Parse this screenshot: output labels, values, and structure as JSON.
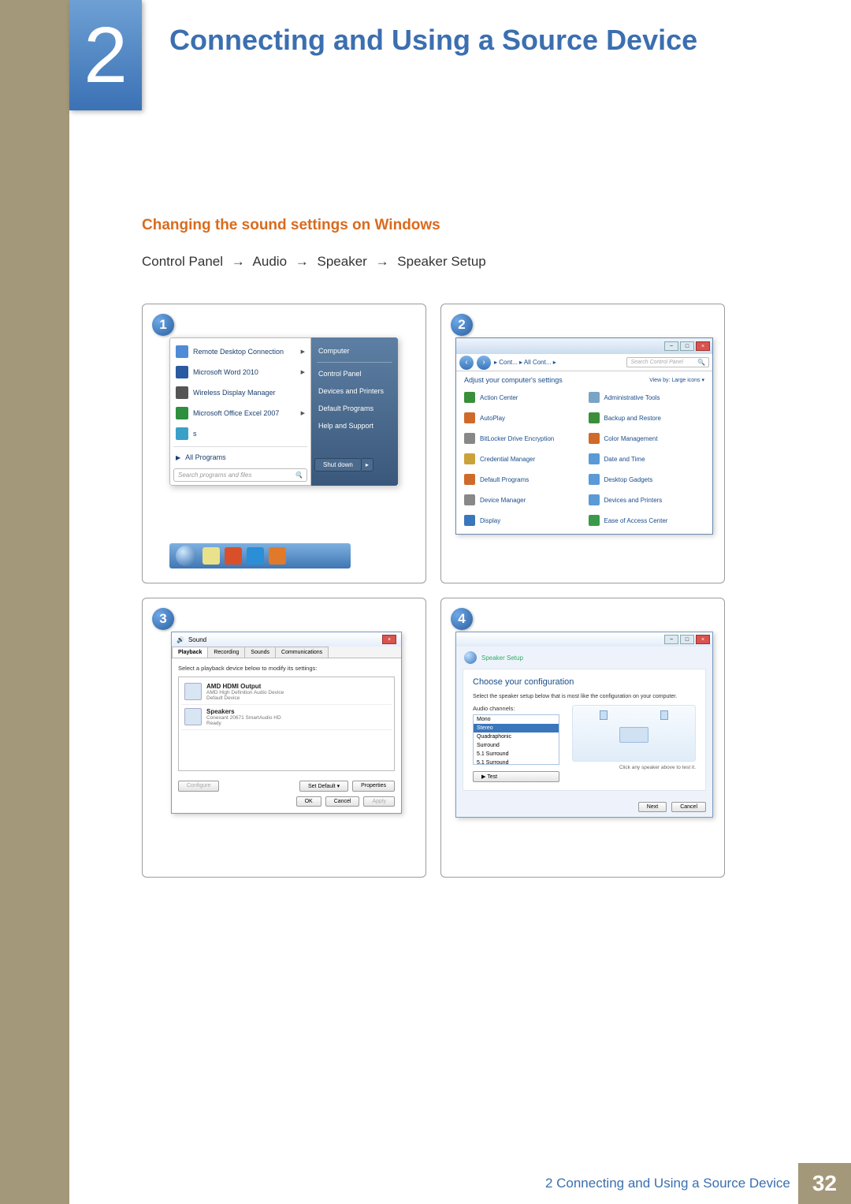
{
  "chapter": {
    "number": "2",
    "title": "Connecting and Using a Source Device"
  },
  "section_heading": "Changing the sound settings on Windows",
  "path": [
    "Control Panel",
    "Audio",
    "Speaker",
    "Speaker Setup"
  ],
  "arrow_glyph": "→",
  "colors": {
    "khaki": "#a4987a",
    "blue_title": "#3b6fb0",
    "orange_heading": "#d96b1e",
    "link_blue": "#1a4d8a",
    "bullet_grad_top": "#6ea8e6",
    "bullet_grad_bot": "#2a5fa0"
  },
  "steps": {
    "s1": {
      "num": "1",
      "left_items": [
        {
          "label": "Remote Desktop Connection",
          "icon_color": "#4f8bd6",
          "arrow": true
        },
        {
          "label": "Microsoft Word 2010",
          "icon_color": "#2a5aa0",
          "arrow": true
        },
        {
          "label": "Wireless Display Manager",
          "icon_color": "#555555",
          "arrow": false
        },
        {
          "label": "Microsoft Office Excel 2007",
          "icon_color": "#2f8f3f",
          "arrow": true
        },
        {
          "label": "s",
          "icon_color": "#3aa0c8",
          "arrow": false
        }
      ],
      "all_programs": "All Programs",
      "search_placeholder": "Search programs and files",
      "right_items": [
        "Computer",
        "Control Panel",
        "Devices and Printers",
        "Default Programs",
        "Help and Support"
      ],
      "shutdown": "Shut down",
      "taskbar_colors": [
        "#e9e28a",
        "#d94f2a",
        "#2a8fd6",
        "#e07a2a"
      ]
    },
    "s2": {
      "num": "2",
      "breadcrumb": "▸ Cont... ▸ All Cont... ▸",
      "search_placeholder": "Search Control Panel",
      "adjust": "Adjust your computer's settings",
      "viewby": "View by:  Large icons ▾",
      "items": [
        {
          "label": "Action Center",
          "c": "#3a8f3a"
        },
        {
          "label": "Administrative Tools",
          "c": "#7aa4c4"
        },
        {
          "label": "AutoPlay",
          "c": "#d06a2a"
        },
        {
          "label": "Backup and Restore",
          "c": "#3a8f3a"
        },
        {
          "label": "BitLocker Drive Encryption",
          "c": "#888888"
        },
        {
          "label": "Color Management",
          "c": "#d06a2a"
        },
        {
          "label": "Credential Manager",
          "c": "#caa23a"
        },
        {
          "label": "Date and Time",
          "c": "#5a9ad6"
        },
        {
          "label": "Default Programs",
          "c": "#d06a2a"
        },
        {
          "label": "Desktop Gadgets",
          "c": "#5a9ad6"
        },
        {
          "label": "Device Manager",
          "c": "#888888"
        },
        {
          "label": "Devices and Printers",
          "c": "#5a9ad6"
        },
        {
          "label": "Display",
          "c": "#3a76bb"
        },
        {
          "label": "Ease of Access Center",
          "c": "#3a9a4a"
        }
      ]
    },
    "s3": {
      "num": "3",
      "title": "Sound",
      "tabs": [
        "Playback",
        "Recording",
        "Sounds",
        "Communications"
      ],
      "instruction": "Select a playback device below to modify its settings:",
      "devices": [
        {
          "name": "AMD HDMI Output",
          "sub1": "AMD High Definition Audio Device",
          "sub2": "Default Device"
        },
        {
          "name": "Speakers",
          "sub1": "Conexant 20671 SmartAudio HD",
          "sub2": "Ready"
        }
      ],
      "btn_configure": "Configure",
      "btn_setdefault": "Set Default ▾",
      "btn_properties": "Properties",
      "btn_ok": "OK",
      "btn_cancel": "Cancel",
      "btn_apply": "Apply"
    },
    "s4": {
      "num": "4",
      "nav": "Speaker Setup",
      "heading": "Choose your configuration",
      "instruction": "Select the speaker setup below that is most like the configuration on your computer.",
      "list_label": "Audio channels:",
      "options": [
        "Mono",
        "Stereo",
        "Quadraphonic",
        "Surround",
        "5.1 Surround",
        "5.1 Surround",
        "5.1 Surround"
      ],
      "btn_test": "▶ Test",
      "click_hint": "Click any speaker above to test it.",
      "btn_next": "Next",
      "btn_cancel": "Cancel"
    }
  },
  "footer": {
    "text": "2 Connecting and Using a Source Device",
    "page": "32"
  }
}
